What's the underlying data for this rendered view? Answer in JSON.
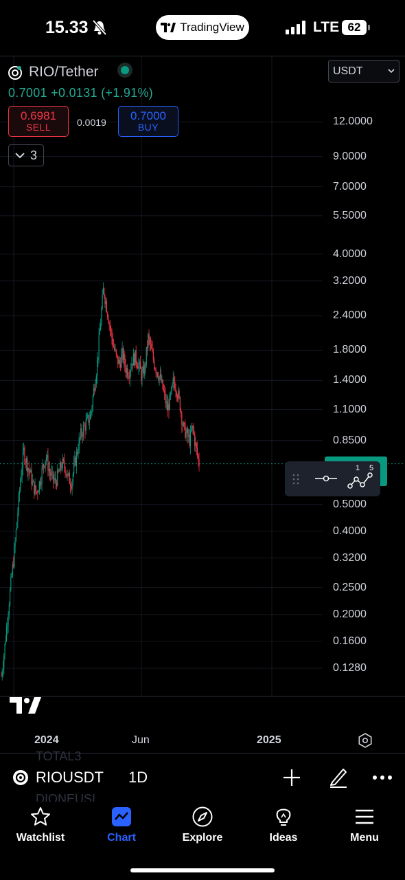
{
  "status_bar": {
    "time": "15.33",
    "app_pill": "TradingView",
    "network": "LTE",
    "battery": "62"
  },
  "header": {
    "symbol": "RIO/Tether",
    "price_line": "0.7001  +0.0131 (+1.91%)",
    "currency": "USDT",
    "sell_price": "0.6981",
    "sell_label": "SELL",
    "buy_price": "0.7000",
    "buy_label": "BUY",
    "spread": "0.0019",
    "indicator_count": "3"
  },
  "price_axis": {
    "labels": [
      "12.0000",
      "9.0000",
      "7.0000",
      "5.5000",
      "4.0000",
      "3.2000",
      "2.4000",
      "1.8000",
      "1.4000",
      "1.1000",
      "0.8500",
      "0.5000",
      "0.4000",
      "0.3200",
      "0.2500",
      "0.2000",
      "0.1600",
      "0.1280"
    ]
  },
  "time_axis": {
    "labels": [
      "2024",
      "Jun",
      "2025"
    ]
  },
  "floating_toolbar": {
    "left_label": "1",
    "right_label": "5"
  },
  "chart_data": {
    "type": "candlestick",
    "scale": "log",
    "ylim": [
      0.11,
      14
    ],
    "x_ticks": [
      "2024",
      "Jun",
      "2025"
    ],
    "last_price": 0.7001,
    "colors": {
      "up": "#089981",
      "down": "#f23645",
      "last_price_line": "#089981"
    },
    "close_path": [
      0.12,
      0.15,
      0.2,
      0.26,
      0.33,
      0.45,
      0.62,
      0.78,
      0.7,
      0.65,
      0.58,
      0.55,
      0.6,
      0.68,
      0.75,
      0.66,
      0.62,
      0.6,
      0.65,
      0.7,
      0.68,
      0.62,
      0.6,
      0.7,
      0.8,
      0.9,
      0.95,
      1.0,
      1.05,
      1.3,
      1.6,
      2.2,
      3.0,
      2.6,
      2.2,
      1.9,
      1.7,
      1.6,
      1.75,
      1.55,
      1.5,
      1.65,
      1.7,
      1.6,
      1.45,
      1.55,
      2.0,
      1.8,
      1.6,
      1.5,
      1.4,
      1.25,
      1.1,
      1.2,
      1.4,
      1.3,
      1.15,
      0.95,
      0.9,
      0.85,
      0.95,
      0.8,
      0.7
    ]
  },
  "symbol_bar": {
    "symbol": "RIOUSDT",
    "interval": "1D",
    "ghost_top": "TOTAL3",
    "ghost_bottom": "DIONEUSI"
  },
  "nav": {
    "items": [
      {
        "label": "Watchlist"
      },
      {
        "label": "Chart"
      },
      {
        "label": "Explore"
      },
      {
        "label": "Ideas"
      },
      {
        "label": "Menu"
      }
    ]
  }
}
